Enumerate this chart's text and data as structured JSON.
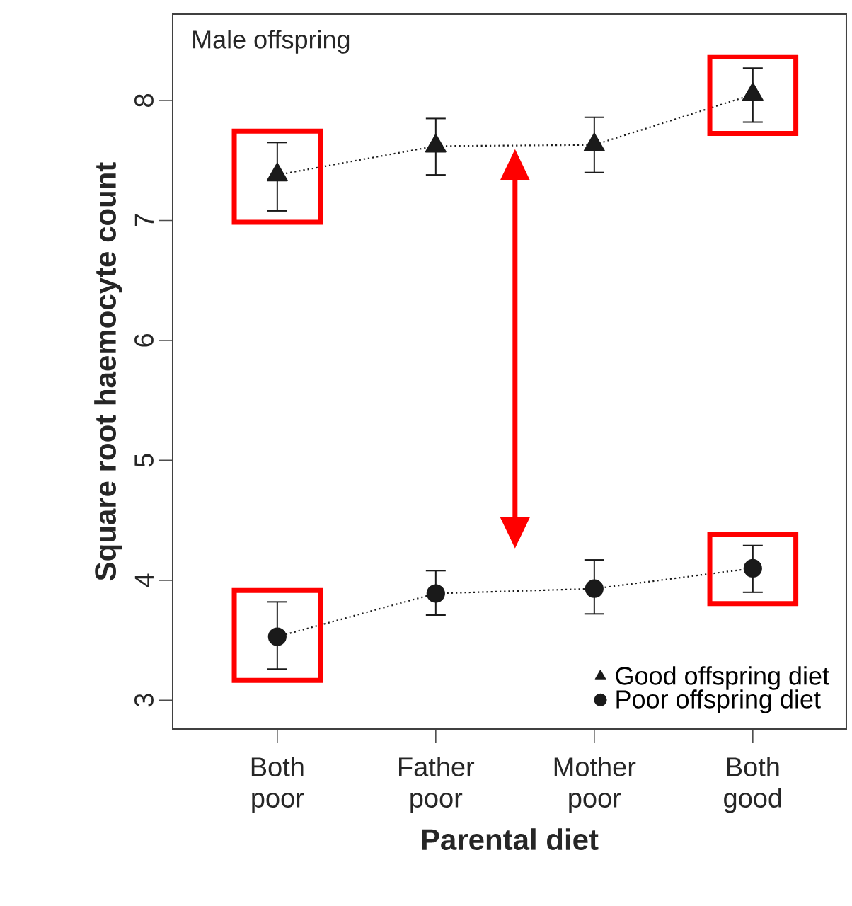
{
  "chart_data": {
    "type": "line",
    "title": "Male offspring",
    "xlabel": "Parental diet",
    "ylabel": "Square root haemocyte count",
    "categories": [
      "Both poor",
      "Father poor",
      "Mother poor",
      "Both good"
    ],
    "series": [
      {
        "name": "Good offspring diet",
        "color": "#1a1a1a",
        "marker": "triangle",
        "line_style": "dotted",
        "values": [
          7.38,
          7.62,
          7.63,
          8.05
        ],
        "errors": [
          [
            7.08,
            7.65
          ],
          [
            7.38,
            7.85
          ],
          [
            7.4,
            7.86
          ],
          [
            7.82,
            8.27
          ]
        ]
      },
      {
        "name": "Poor offspring diet",
        "color": "#1a1a1a",
        "marker": "circle",
        "line_style": "dotted",
        "values": [
          3.53,
          3.89,
          3.93,
          4.1
        ],
        "errors": [
          [
            3.26,
            3.82
          ],
          [
            3.71,
            4.08
          ],
          [
            3.72,
            4.17
          ],
          [
            3.9,
            4.29
          ]
        ]
      }
    ],
    "ylim": [
      2.76,
      8.72
    ],
    "yticks": [
      3,
      4,
      5,
      6,
      7,
      8
    ],
    "legend": "bottom right",
    "grid": false
  }
}
